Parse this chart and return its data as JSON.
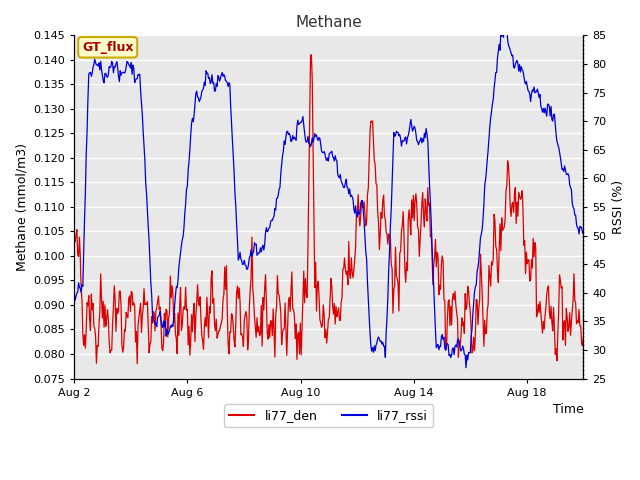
{
  "title": "Methane",
  "xlabel": "Time",
  "ylabel_left": "Methane (mmol/m3)",
  "ylabel_right": "RSSI (%)",
  "ylim_left": [
    0.075,
    0.145
  ],
  "ylim_right": [
    25,
    85
  ],
  "annotation_text": "GT_flux",
  "legend_entries": [
    "li77_den",
    "li77_rssi"
  ],
  "red_color": "#dd0000",
  "blue_color": "#0000dd",
  "plot_bg_color": "#e8e8e8",
  "fig_bg_color": "#ffffff",
  "grid_color": "#ffffff",
  "yticks_left": [
    0.075,
    0.08,
    0.085,
    0.09,
    0.095,
    0.1,
    0.105,
    0.11,
    0.115,
    0.12,
    0.125,
    0.13,
    0.135,
    0.14,
    0.145
  ],
  "yticks_right": [
    25,
    30,
    35,
    40,
    45,
    50,
    55,
    60,
    65,
    70,
    75,
    80,
    85
  ],
  "xtick_positions": [
    1,
    5,
    9,
    13,
    17
  ],
  "xtick_labels": [
    "Aug 2",
    "Aug 6",
    "Aug 10",
    "Aug 14",
    "Aug 18"
  ],
  "xlim": [
    1,
    19
  ],
  "annotation_facecolor": "#ffffcc",
  "annotation_edgecolor": "#ccaa00",
  "annotation_textcolor": "#aa0000"
}
